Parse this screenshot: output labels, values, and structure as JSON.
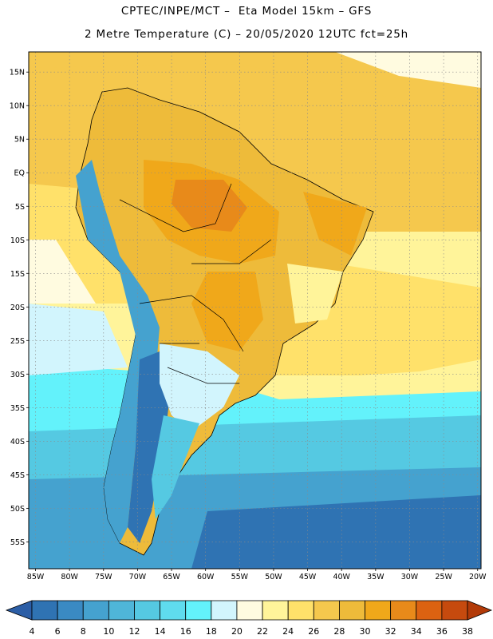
{
  "title": {
    "line1": "CPTEC/INPE/MCT –  Eta Model 15km – GFS",
    "line2": "2 Metre Temperature (C) – 20/05/2020 12UTC fct=25h"
  },
  "map": {
    "region": "South America",
    "lon_range": [
      -86,
      -19.5
    ],
    "lat_range": [
      18,
      -59
    ],
    "lat_labels": [
      "15N",
      "10N",
      "5N",
      "EQ",
      "5S",
      "10S",
      "15S",
      "20S",
      "25S",
      "30S",
      "35S",
      "40S",
      "45S",
      "50S",
      "55S"
    ],
    "lat_values": [
      15,
      10,
      5,
      0,
      -5,
      -10,
      -15,
      -20,
      -25,
      -30,
      -35,
      -40,
      -45,
      -50,
      -55
    ],
    "lon_labels": [
      "85W",
      "80W",
      "75W",
      "70W",
      "65W",
      "60W",
      "55W",
      "50W",
      "45W",
      "40W",
      "35W",
      "30W",
      "25W",
      "20W"
    ],
    "lon_values": [
      -85,
      -80,
      -75,
      -70,
      -65,
      -60,
      -55,
      -50,
      -45,
      -40,
      -35,
      -30,
      -25,
      -20
    ],
    "grid": "dotted"
  },
  "colorbar": {
    "labels": [
      "4",
      "6",
      "8",
      "10",
      "12",
      "14",
      "16",
      "18",
      "20",
      "22",
      "24",
      "26",
      "28",
      "30",
      "32",
      "34",
      "36",
      "38"
    ],
    "colors": [
      "#2c5ea6",
      "#2f73b3",
      "#3a8ac3",
      "#45a2cf",
      "#4fb6d8",
      "#55c9e2",
      "#5fdcee",
      "#63f2fb",
      "#d2f5fd",
      "#fffbe0",
      "#fff49a",
      "#ffe16a",
      "#f5c84d",
      "#eebb3a",
      "#f0a81a",
      "#e88a1a",
      "#dc6211",
      "#c64a0e",
      "#b23a08"
    ]
  }
}
